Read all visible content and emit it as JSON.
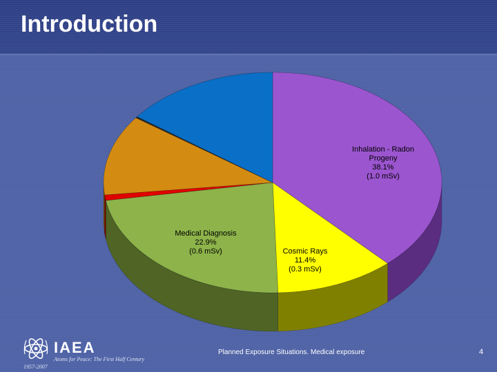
{
  "header": {
    "title": "Introduction"
  },
  "footer": {
    "text": "Planned Exposure Situations. Medical exposure",
    "page_number": "4",
    "logo": {
      "name": "IAEA",
      "tagline": "Atoms for Peace: The First Half Century",
      "years": "1957-2007"
    }
  },
  "chart_data": {
    "type": "pie",
    "slices": [
      {
        "value": 38.1,
        "color": "#9b55cf",
        "side": "#5a2d80",
        "label": [
          "Inhalation - Radon",
          "Progeny",
          "38.1%",
          "(1.0 mSv)"
        ]
      },
      {
        "value": 11.4,
        "color": "#ffff00",
        "side": "#808000",
        "label": [
          "Cosmic Rays",
          "11.4%",
          "(0.3 mSv)"
        ]
      },
      {
        "value": 22.9,
        "color": "#8db34a",
        "side": "#4f6425",
        "label": [
          "Medical Diagnosis",
          "22.9%",
          "(0.6 mSv)"
        ]
      },
      {
        "value": 0.8,
        "color": "#e00000",
        "side": "#7a0000",
        "label": []
      },
      {
        "value": 11.8,
        "color": "#d38b12",
        "side": "#7a5008",
        "label": []
      },
      {
        "value": 0.2,
        "color": "#2a2a2a",
        "side": "#111111",
        "label": []
      },
      {
        "value": 14.8,
        "color": "#0a6fc6",
        "side": "#043d70",
        "label": []
      }
    ]
  }
}
